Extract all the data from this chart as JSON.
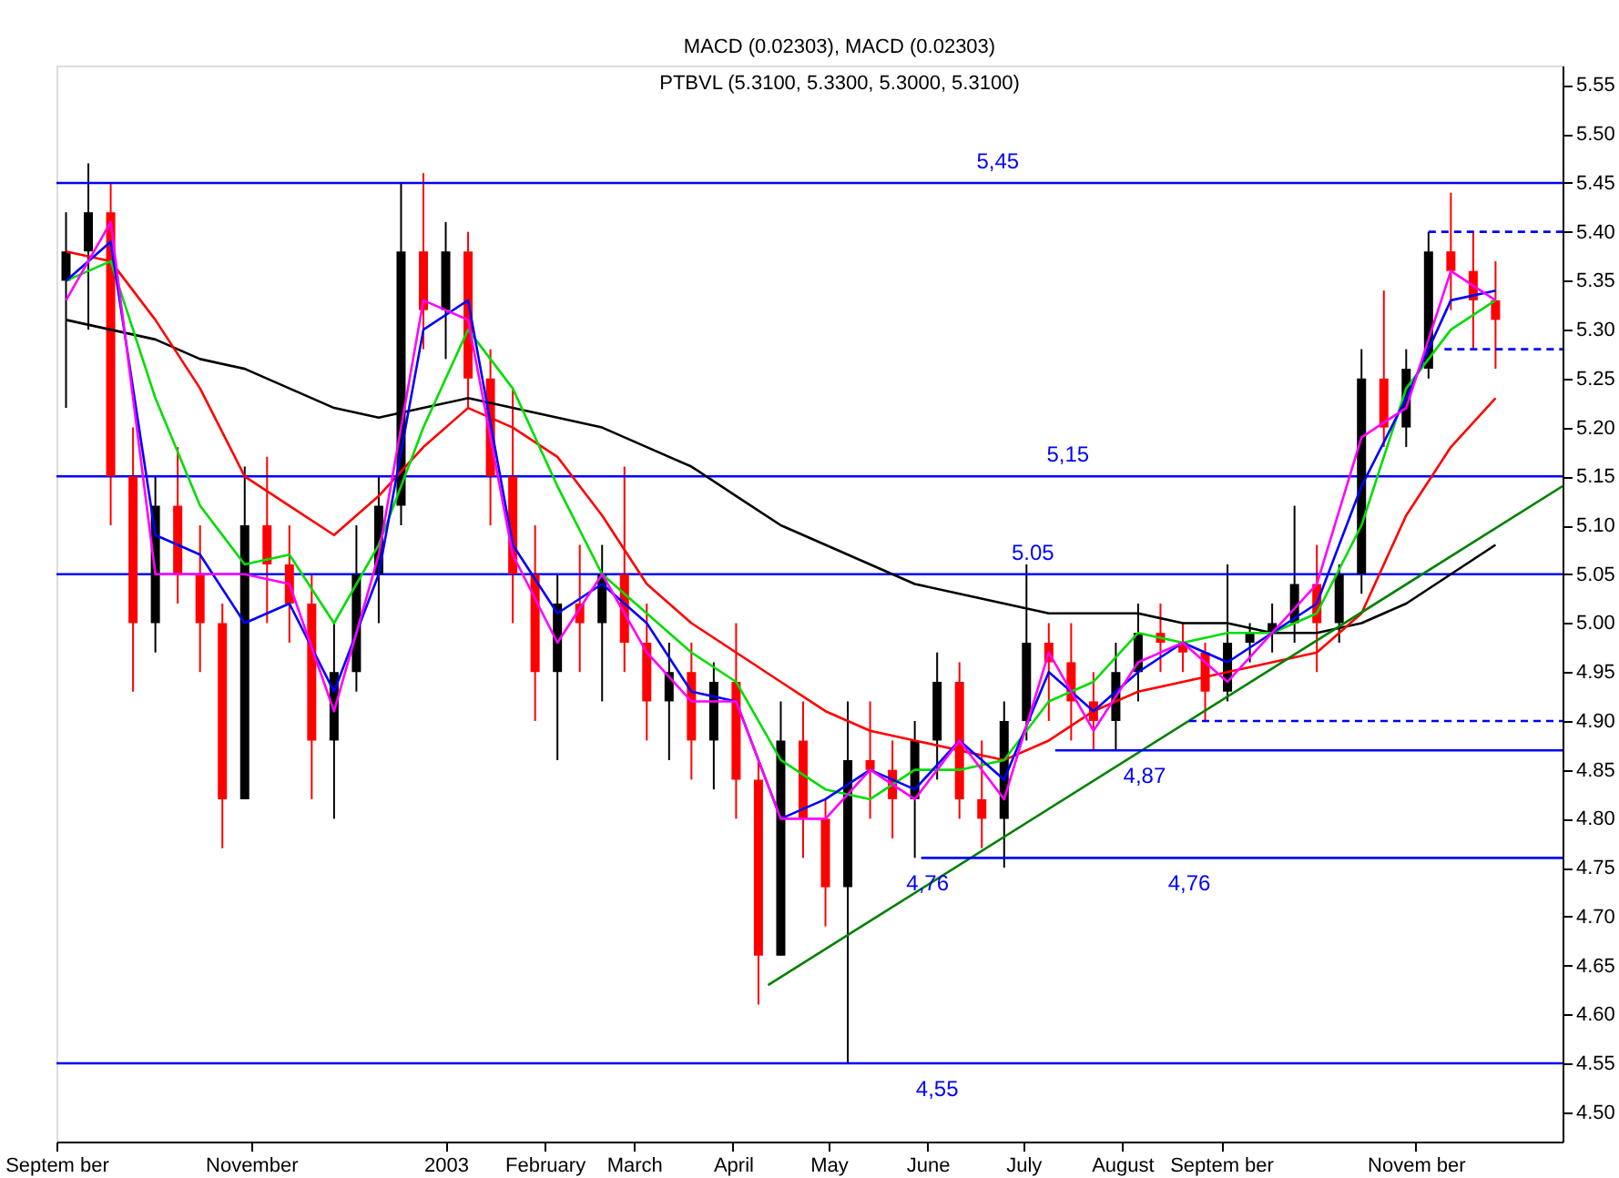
{
  "chart_data": {
    "type": "candlestick",
    "title": "PTBVL (5.3100, 5.3300, 5.3000, 5.3100)",
    "annotations": [
      "MACD (0.02303), MACD (0.02303)",
      {
        "text": "5,45",
        "x": "2003-06-23",
        "y": 5.45
      },
      {
        "text": "5,15",
        "x": "2003-07-15",
        "y": 5.15
      },
      {
        "text": "5.05",
        "x": "2003-07-04",
        "y": 5.05
      },
      {
        "text": "4,87",
        "x": "2003-08-08",
        "y": 4.87
      },
      {
        "text": "4,76",
        "x": "2003-06-01",
        "y": 4.76
      },
      {
        "text": "4,76",
        "x": "2003-08-22",
        "y": 4.76
      },
      {
        "text": "4,55",
        "x": "2003-06-04",
        "y": 4.55
      }
    ],
    "x": [
      "2002-09-04",
      "2002-09-11",
      "2002-09-18",
      "2002-09-25",
      "2002-10-02",
      "2002-10-09",
      "2002-10-16",
      "2002-10-23",
      "2002-10-30",
      "2002-11-06",
      "2002-11-13",
      "2002-11-20",
      "2002-11-27",
      "2002-12-04",
      "2002-12-11",
      "2002-12-18",
      "2002-12-25",
      "2003-01-01",
      "2003-01-08",
      "2003-01-15",
      "2003-01-22",
      "2003-01-29",
      "2003-02-05",
      "2003-02-12",
      "2003-02-19",
      "2003-02-26",
      "2003-03-05",
      "2003-03-12",
      "2003-03-19",
      "2003-03-26",
      "2003-04-02",
      "2003-04-09",
      "2003-04-16",
      "2003-04-23",
      "2003-04-30",
      "2003-05-07",
      "2003-05-14",
      "2003-05-21",
      "2003-05-28",
      "2003-06-04",
      "2003-06-11",
      "2003-06-18",
      "2003-06-25",
      "2003-07-02",
      "2003-07-09",
      "2003-07-16",
      "2003-07-23",
      "2003-07-30",
      "2003-08-06",
      "2003-08-13",
      "2003-08-20",
      "2003-08-27",
      "2003-09-03",
      "2003-09-10",
      "2003-09-17",
      "2003-09-24",
      "2003-10-01",
      "2003-10-08",
      "2003-10-15",
      "2003-10-22",
      "2003-10-29",
      "2003-11-05",
      "2003-11-12",
      "2003-11-19",
      "2003-11-26"
    ],
    "ohlc": [
      [
        5.35,
        5.42,
        5.22,
        5.38
      ],
      [
        5.38,
        5.47,
        5.3,
        5.42
      ],
      [
        5.42,
        5.45,
        5.1,
        5.15
      ],
      [
        5.15,
        5.2,
        4.93,
        5.0
      ],
      [
        5.0,
        5.15,
        4.97,
        5.12
      ],
      [
        5.12,
        5.18,
        5.02,
        5.05
      ],
      [
        5.05,
        5.1,
        4.95,
        5.0
      ],
      [
        5.0,
        5.02,
        4.77,
        4.82
      ],
      [
        4.82,
        5.16,
        4.82,
        5.1
      ],
      [
        5.1,
        5.17,
        5.0,
        5.06
      ],
      [
        5.06,
        5.1,
        4.98,
        5.02
      ],
      [
        5.02,
        5.05,
        4.82,
        4.88
      ],
      [
        4.88,
        5.0,
        4.8,
        4.95
      ],
      [
        4.95,
        5.1,
        4.93,
        5.05
      ],
      [
        5.05,
        5.15,
        5.0,
        5.12
      ],
      [
        5.12,
        5.45,
        5.1,
        5.38
      ],
      [
        5.38,
        5.46,
        5.28,
        5.32
      ],
      [
        5.32,
        5.41,
        5.27,
        5.38
      ],
      [
        5.38,
        5.4,
        5.22,
        5.25
      ],
      [
        5.25,
        5.28,
        5.1,
        5.15
      ],
      [
        5.15,
        5.24,
        5.0,
        5.05
      ],
      [
        5.05,
        5.1,
        4.9,
        4.95
      ],
      [
        4.95,
        5.05,
        4.86,
        5.02
      ],
      [
        5.02,
        5.08,
        4.95,
        5.0
      ],
      [
        5.0,
        5.08,
        4.92,
        5.05
      ],
      [
        5.05,
        5.16,
        4.95,
        4.98
      ],
      [
        4.98,
        5.02,
        4.88,
        4.92
      ],
      [
        4.92,
        4.98,
        4.86,
        4.95
      ],
      [
        4.95,
        4.98,
        4.84,
        4.88
      ],
      [
        4.88,
        4.96,
        4.83,
        4.94
      ],
      [
        4.94,
        5.0,
        4.8,
        4.84
      ],
      [
        4.84,
        4.86,
        4.61,
        4.66
      ],
      [
        4.66,
        4.92,
        4.66,
        4.88
      ],
      [
        4.88,
        4.92,
        4.76,
        4.8
      ],
      [
        4.8,
        4.82,
        4.69,
        4.73
      ],
      [
        4.73,
        4.92,
        4.55,
        4.86
      ],
      [
        4.86,
        4.92,
        4.8,
        4.85
      ],
      [
        4.85,
        4.88,
        4.78,
        4.82
      ],
      [
        4.82,
        4.9,
        4.76,
        4.88
      ],
      [
        4.88,
        4.97,
        4.84,
        4.94
      ],
      [
        4.94,
        4.96,
        4.8,
        4.82
      ],
      [
        4.82,
        4.88,
        4.77,
        4.8
      ],
      [
        4.8,
        4.92,
        4.75,
        4.9
      ],
      [
        4.9,
        5.06,
        4.88,
        4.98
      ],
      [
        4.98,
        5.0,
        4.9,
        4.96
      ],
      [
        4.96,
        5.0,
        4.88,
        4.92
      ],
      [
        4.92,
        4.95,
        4.87,
        4.9
      ],
      [
        4.9,
        4.98,
        4.87,
        4.95
      ],
      [
        4.95,
        5.02,
        4.92,
        4.99
      ],
      [
        4.99,
        5.02,
        4.95,
        4.98
      ],
      [
        4.98,
        5.0,
        4.95,
        4.97
      ],
      [
        4.97,
        4.98,
        4.9,
        4.93
      ],
      [
        4.93,
        5.06,
        4.92,
        4.98
      ],
      [
        4.98,
        5.0,
        4.96,
        4.99
      ],
      [
        4.99,
        5.02,
        4.97,
        5.0
      ],
      [
        5.0,
        5.12,
        4.98,
        5.04
      ],
      [
        5.04,
        5.08,
        4.95,
        5.0
      ],
      [
        5.0,
        5.06,
        4.98,
        5.05
      ],
      [
        5.05,
        5.28,
        5.03,
        5.25
      ],
      [
        5.25,
        5.34,
        5.18,
        5.2
      ],
      [
        5.2,
        5.28,
        5.18,
        5.26
      ],
      [
        5.26,
        5.4,
        5.25,
        5.38
      ],
      [
        5.38,
        5.44,
        5.32,
        5.36
      ],
      [
        5.36,
        5.4,
        5.28,
        5.33
      ],
      [
        5.33,
        5.37,
        5.26,
        5.31
      ]
    ],
    "colors": [
      "#000000",
      "#000000",
      "#ff0000",
      "#ff0000",
      "#000000",
      "#ff0000",
      "#ff0000",
      "#ff0000",
      "#000000",
      "#ff0000",
      "#ff0000",
      "#ff0000",
      "#000000",
      "#000000",
      "#000000",
      "#000000",
      "#ff0000",
      "#000000",
      "#ff0000",
      "#ff0000",
      "#ff0000",
      "#ff0000",
      "#000000",
      "#ff0000",
      "#000000",
      "#ff0000",
      "#ff0000",
      "#000000",
      "#ff0000",
      "#000000",
      "#ff0000",
      "#ff0000",
      "#000000",
      "#ff0000",
      "#ff0000",
      "#000000",
      "#ff0000",
      "#ff0000",
      "#000000",
      "#000000",
      "#ff0000",
      "#ff0000",
      "#000000",
      "#000000",
      "#ff0000",
      "#ff0000",
      "#ff0000",
      "#000000",
      "#000000",
      "#ff0000",
      "#ff0000",
      "#ff0000",
      "#000000",
      "#000000",
      "#000000",
      "#000000",
      "#ff0000",
      "#000000",
      "#000000",
      "#ff0000",
      "#000000",
      "#000000",
      "#ff0000",
      "#ff0000",
      "#ff0000"
    ],
    "series": [
      {
        "type": "line",
        "color": "#000000",
        "x": [
          "2002-09-04",
          "2002-09-18",
          "2002-10-02",
          "2002-10-16",
          "2002-10-30",
          "2002-11-13",
          "2002-11-27",
          "2002-12-11",
          "2002-12-25",
          "2003-01-08",
          "2003-01-22",
          "2003-02-05",
          "2003-02-19",
          "2003-03-05",
          "2003-03-19",
          "2003-04-02",
          "2003-04-16",
          "2003-04-30",
          "2003-05-14",
          "2003-05-28",
          "2003-06-11",
          "2003-06-25",
          "2003-07-09",
          "2003-07-23",
          "2003-08-06",
          "2003-08-20",
          "2003-09-03",
          "2003-09-17",
          "2003-10-01",
          "2003-10-15",
          "2003-10-29",
          "2003-11-12",
          "2003-11-26"
        ],
        "values": [
          5.31,
          5.3,
          5.29,
          5.27,
          5.26,
          5.24,
          5.22,
          5.21,
          5.22,
          5.23,
          5.22,
          5.21,
          5.2,
          5.18,
          5.16,
          5.13,
          5.1,
          5.08,
          5.06,
          5.04,
          5.03,
          5.02,
          5.01,
          5.01,
          5.01,
          5.0,
          5.0,
          4.99,
          4.99,
          5.0,
          5.02,
          5.05,
          5.08
        ]
      },
      {
        "type": "line",
        "color": "#ff0000",
        "x": [
          "2002-09-04",
          "2002-09-18",
          "2002-10-02",
          "2002-10-16",
          "2002-10-30",
          "2002-11-13",
          "2002-11-27",
          "2002-12-11",
          "2002-12-25",
          "2003-01-08",
          "2003-01-22",
          "2003-02-05",
          "2003-02-19",
          "2003-03-05",
          "2003-03-19",
          "2003-04-02",
          "2003-04-16",
          "2003-04-30",
          "2003-05-14",
          "2003-05-28",
          "2003-06-11",
          "2003-06-25",
          "2003-07-09",
          "2003-07-23",
          "2003-08-06",
          "2003-08-20",
          "2003-09-03",
          "2003-09-17",
          "2003-10-01",
          "2003-10-15",
          "2003-10-29",
          "2003-11-12",
          "2003-11-26"
        ],
        "values": [
          5.38,
          5.37,
          5.31,
          5.24,
          5.15,
          5.12,
          5.09,
          5.13,
          5.18,
          5.22,
          5.2,
          5.17,
          5.11,
          5.04,
          5.0,
          4.97,
          4.94,
          4.91,
          4.89,
          4.88,
          4.87,
          4.86,
          4.88,
          4.91,
          4.93,
          4.94,
          4.95,
          4.96,
          4.97,
          5.01,
          5.11,
          5.18,
          5.23
        ]
      },
      {
        "type": "line",
        "color": "#00dd00",
        "x": [
          "2002-09-04",
          "2002-09-18",
          "2002-10-02",
          "2002-10-16",
          "2002-10-30",
          "2002-11-13",
          "2002-11-27",
          "2002-12-11",
          "2002-12-25",
          "2003-01-08",
          "2003-01-22",
          "2003-02-05",
          "2003-02-19",
          "2003-03-05",
          "2003-03-19",
          "2003-04-02",
          "2003-04-16",
          "2003-04-30",
          "2003-05-14",
          "2003-05-28",
          "2003-06-11",
          "2003-06-25",
          "2003-07-09",
          "2003-07-23",
          "2003-08-06",
          "2003-08-20",
          "2003-09-03",
          "2003-09-17",
          "2003-10-01",
          "2003-10-15",
          "2003-10-29",
          "2003-11-12",
          "2003-11-26"
        ],
        "values": [
          5.35,
          5.37,
          5.23,
          5.12,
          5.06,
          5.07,
          5.0,
          5.08,
          5.2,
          5.3,
          5.24,
          5.14,
          5.05,
          5.01,
          4.97,
          4.94,
          4.86,
          4.83,
          4.82,
          4.85,
          4.85,
          4.86,
          4.92,
          4.94,
          4.99,
          4.98,
          4.99,
          4.99,
          5.01,
          5.1,
          5.24,
          5.3,
          5.33
        ]
      },
      {
        "type": "line",
        "color": "#0000ff",
        "x": [
          "2002-09-04",
          "2002-09-18",
          "2002-10-02",
          "2002-10-16",
          "2002-10-30",
          "2002-11-13",
          "2002-11-27",
          "2002-12-11",
          "2002-12-25",
          "2003-01-08",
          "2003-01-22",
          "2003-02-05",
          "2003-02-19",
          "2003-03-05",
          "2003-03-19",
          "2003-04-02",
          "2003-04-16",
          "2003-04-30",
          "2003-05-14",
          "2003-05-28",
          "2003-06-11",
          "2003-06-25",
          "2003-07-09",
          "2003-07-23",
          "2003-08-06",
          "2003-08-20",
          "2003-09-03",
          "2003-09-17",
          "2003-10-01",
          "2003-10-15",
          "2003-10-29",
          "2003-11-12",
          "2003-11-26"
        ],
        "values": [
          5.35,
          5.39,
          5.09,
          5.07,
          5.0,
          5.02,
          4.93,
          5.05,
          5.3,
          5.33,
          5.08,
          5.01,
          5.04,
          5.0,
          4.93,
          4.92,
          4.8,
          4.82,
          4.85,
          4.83,
          4.88,
          4.84,
          4.95,
          4.91,
          4.95,
          4.98,
          4.96,
          4.99,
          5.02,
          5.14,
          5.23,
          5.33,
          5.34
        ]
      },
      {
        "type": "line",
        "color": "#ff00ff",
        "x": [
          "2002-09-04",
          "2002-09-18",
          "2002-10-02",
          "2002-10-16",
          "2002-10-30",
          "2002-11-13",
          "2002-11-27",
          "2002-12-11",
          "2002-12-25",
          "2003-01-08",
          "2003-01-22",
          "2003-02-05",
          "2003-02-19",
          "2003-03-05",
          "2003-03-19",
          "2003-04-02",
          "2003-04-16",
          "2003-04-30",
          "2003-05-14",
          "2003-05-28",
          "2003-06-11",
          "2003-06-25",
          "2003-07-09",
          "2003-07-23",
          "2003-08-06",
          "2003-08-20",
          "2003-09-03",
          "2003-09-17",
          "2003-10-01",
          "2003-10-15",
          "2003-10-29",
          "2003-11-12",
          "2003-11-26"
        ],
        "values": [
          5.33,
          5.41,
          5.05,
          5.05,
          5.05,
          5.04,
          4.91,
          5.07,
          5.33,
          5.31,
          5.07,
          4.98,
          5.05,
          4.97,
          4.92,
          4.92,
          4.8,
          4.8,
          4.85,
          4.82,
          4.88,
          4.82,
          4.97,
          4.89,
          4.96,
          4.98,
          4.94,
          4.99,
          5.04,
          5.19,
          5.22,
          5.36,
          5.33
        ]
      },
      {
        "type": "line",
        "color": "#008000",
        "x": [
          "2003-04-12",
          "2003-12-17"
        ],
        "values": [
          4.63,
          5.14
        ]
      },
      {
        "type": "line",
        "color": "#0000ff",
        "x": [
          "2003-07-11",
          "2003-12-17"
        ],
        "values": [
          4.87,
          4.87
        ]
      },
      {
        "type": "line",
        "color": "#0000ff",
        "x": [
          "2003-05-30",
          "2003-12-17"
        ],
        "values": [
          4.76,
          4.76
        ]
      },
      {
        "type": "line",
        "color": "#0000ff",
        "line_style": "dashed",
        "x": [
          "2003-11-05",
          "2003-12-17"
        ],
        "values": [
          5.4,
          5.4
        ]
      },
      {
        "type": "line",
        "color": "#0000ff",
        "line_style": "dashed",
        "x": [
          "2003-11-10",
          "2003-12-17"
        ],
        "values": [
          5.28,
          5.28
        ]
      },
      {
        "type": "line",
        "color": "#0000ff",
        "line_style": "dashed",
        "x": [
          "2003-08-22",
          "2003-12-17"
        ],
        "values": [
          4.9,
          4.9
        ]
      }
    ],
    "ref_lines": [
      {
        "axis": "y",
        "value": 5.45,
        "color": "#0000ff"
      },
      {
        "axis": "y",
        "value": 5.15,
        "color": "#0000ff"
      },
      {
        "axis": "y",
        "value": 5.05,
        "color": "#0000ff"
      },
      {
        "axis": "y",
        "value": 4.55,
        "color": "#0000ff"
      }
    ],
    "xlim": [
      "2002-09-01",
      "2003-12-17"
    ],
    "xticks": [
      {
        "value": "2002-09-01",
        "label": "Septem ber"
      },
      {
        "value": "2002-11-01",
        "label": "November"
      },
      {
        "value": "2003-01-01",
        "label": "2003"
      },
      {
        "value": "2003-02-01",
        "label": "February"
      },
      {
        "value": "2003-03-01",
        "label": "March"
      },
      {
        "value": "2003-04-01",
        "label": "April"
      },
      {
        "value": "2003-05-01",
        "label": "May"
      },
      {
        "value": "2003-06-01",
        "label": "June"
      },
      {
        "value": "2003-07-01",
        "label": "July"
      },
      {
        "value": "2003-08-01",
        "label": "August"
      },
      {
        "value": "2003-09-01",
        "label": "Septem ber"
      },
      {
        "value": "2003-11-01",
        "label": "Novem ber"
      }
    ],
    "ylim": [
      4.47,
      5.57
    ],
    "yticks": [
      {
        "value": 4.5,
        "label": "4.50"
      },
      4.55,
      {
        "value": 4.6,
        "label": "4.60"
      },
      4.65,
      {
        "value": 4.7,
        "label": "4.70"
      },
      4.75,
      {
        "value": 4.8,
        "label": "4.80"
      },
      4.85,
      {
        "value": 4.9,
        "label": "4.90"
      },
      4.95,
      {
        "value": 5.0,
        "label": "5.00"
      },
      5.05,
      {
        "value": 5.1,
        "label": "5.10"
      },
      5.15,
      {
        "value": 5.2,
        "label": "5.20"
      },
      5.25,
      {
        "value": 5.3,
        "label": "5.30"
      },
      5.35,
      {
        "value": 5.4,
        "label": "5.40"
      },
      5.45,
      {
        "value": 5.5,
        "label": "5.50"
      },
      5.55
    ],
    "grid": false
  }
}
